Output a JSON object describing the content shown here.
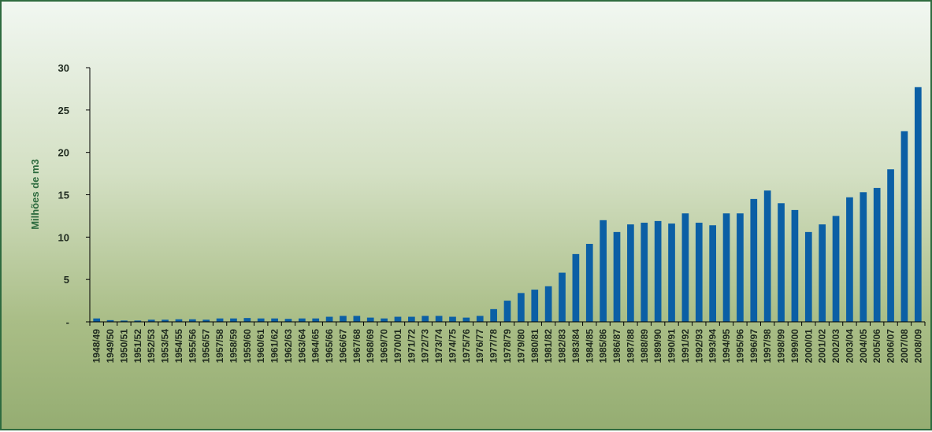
{
  "chart_data": {
    "type": "bar",
    "ylabel": "Milhões de m3",
    "ylim": [
      0,
      30
    ],
    "yticks": [
      0,
      5,
      10,
      15,
      20,
      25,
      30
    ],
    "ytick_labels": [
      "-",
      "5",
      "10",
      "15",
      "20",
      "25",
      "30"
    ],
    "grid": false,
    "legend": "none",
    "bar_color": "#0b5fa5",
    "axis_color": "#000000",
    "categories": [
      "1948/49",
      "1949/50",
      "1950/51",
      "1951/52",
      "1952/53",
      "1953/54",
      "1954/55",
      "1955/56",
      "1956/57",
      "1957/58",
      "1958/59",
      "1959/60",
      "1960/61",
      "1961/62",
      "1962/63",
      "1963/64",
      "1964/65",
      "1965/66",
      "1966/67",
      "1967/68",
      "1968/69",
      "1969/70",
      "1970/01",
      "1971/72",
      "1972/73",
      "1973/74",
      "1974/75",
      "1975/76",
      "1976/77",
      "1977/78",
      "1978/79",
      "1979/80",
      "1980/81",
      "1981/82",
      "1982/83",
      "1983/84",
      "1984/85",
      "1985/86",
      "1986/87",
      "1987/88",
      "1988/89",
      "1989/90",
      "1990/91",
      "1991/92",
      "1992/93",
      "1993/94",
      "1994/95",
      "1995/96",
      "1996/97",
      "1997/98",
      "1998/99",
      "1999/00",
      "2000/01",
      "2001/02",
      "2002/03",
      "2003/04",
      "2004/05",
      "2005/06",
      "2006/07",
      "2007/08",
      "2008/09"
    ],
    "values": [
      0.4,
      0.2,
      0.15,
      0.15,
      0.25,
      0.25,
      0.3,
      0.3,
      0.25,
      0.4,
      0.4,
      0.45,
      0.4,
      0.4,
      0.35,
      0.4,
      0.4,
      0.6,
      0.7,
      0.7,
      0.5,
      0.4,
      0.6,
      0.6,
      0.7,
      0.7,
      0.6,
      0.5,
      0.7,
      1.5,
      2.5,
      3.4,
      3.8,
      4.2,
      5.8,
      8.0,
      9.2,
      12.0,
      10.6,
      11.5,
      11.7,
      11.9,
      11.6,
      12.8,
      11.7,
      11.4,
      12.8,
      12.8,
      14.5,
      15.5,
      14.0,
      13.2,
      10.6,
      11.5,
      12.5,
      14.7,
      15.3,
      15.8,
      18.0,
      22.5,
      27.7
    ]
  }
}
